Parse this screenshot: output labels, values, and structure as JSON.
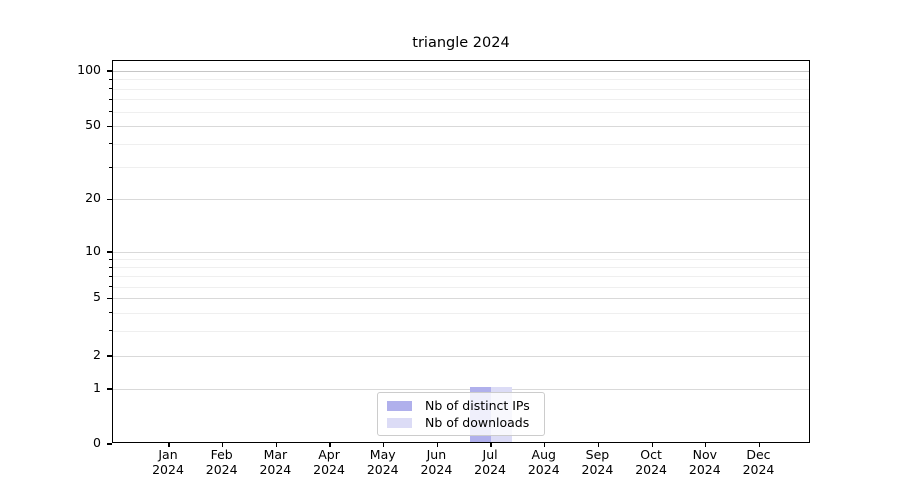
{
  "chart_data": {
    "type": "bar",
    "title": "triangle 2024",
    "categories": [
      "Jan",
      "Feb",
      "Mar",
      "Apr",
      "May",
      "Jun",
      "Jul",
      "Aug",
      "Sep",
      "Oct",
      "Nov",
      "Dec"
    ],
    "category_year": "2024",
    "series": [
      {
        "name": "Nb of distinct IPs",
        "color": "#b0b0ec",
        "values": [
          0,
          0,
          0,
          0,
          0,
          0,
          1,
          0,
          0,
          0,
          0,
          0
        ]
      },
      {
        "name": "Nb of downloads",
        "color": "#dcdcf6",
        "values": [
          0,
          0,
          0,
          0,
          0,
          0,
          1,
          0,
          0,
          0,
          0,
          0
        ]
      }
    ],
    "xlabel": "",
    "ylabel": "",
    "y_axis": {
      "scale": "symlog",
      "ylim": [
        0,
        115
      ],
      "ticks": [
        0,
        1,
        2,
        5,
        10,
        20,
        50,
        100
      ],
      "tick_fractions": {
        "0": 1.0,
        "1": 0.8564,
        "2": 0.7702,
        "5": 0.6201,
        "10": 0.4987,
        "20": 0.3616,
        "50": 0.171,
        "100": 0.0261
      },
      "minor_ticks": [
        3,
        4,
        6,
        7,
        8,
        9,
        30,
        40,
        60,
        70,
        80,
        90
      ],
      "minor_fractions": {
        "3": 0.7044,
        "4": 0.6577,
        "6": 0.5891,
        "7": 0.5619,
        "8": 0.5381,
        "9": 0.5172,
        "30": 0.2776,
        "40": 0.2167,
        "60": 0.1319,
        "70": 0.1,
        "80": 0.0723,
        "90": 0.0478
      }
    },
    "grid": {
      "show": true,
      "major_color": "#d9d9d9",
      "minor_color": "#efefef",
      "top_line_color": "#c6c6c6"
    },
    "legend": {
      "position": "lower center",
      "entries": [
        "Nb of distinct IPs",
        "Nb of downloads"
      ]
    }
  }
}
